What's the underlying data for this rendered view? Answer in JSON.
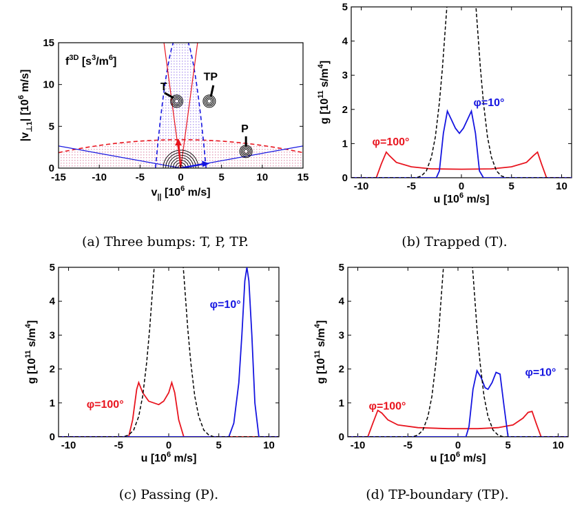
{
  "colors": {
    "red": "#e8141e",
    "blue": "#1414e0",
    "black": "#000000",
    "shade": "#c8a8ff"
  },
  "panels": [
    {
      "id": "a",
      "caption": "(a) Three bumps: T, P, TP.",
      "annotation": "f^3D [s^3/m^6]",
      "ann_main": "f",
      "ann_sup": "3D",
      "ann_rest": " [s",
      "ann_sup2": "3",
      "ann_rest2": "/m",
      "ann_sup3": "6",
      "ann_end": "]",
      "xlabel": "v_|| [10^6 m/s]",
      "ylabel": "|v_⊥1| [10^6 m/s]",
      "xlim": [
        -15,
        15
      ],
      "ylim": [
        0,
        15
      ],
      "xticks": [
        "-15",
        "-10",
        "-5",
        "0",
        "5",
        "10",
        "15"
      ],
      "yticks": [
        "0",
        "5",
        "10",
        "15"
      ],
      "labels": [
        "T",
        "TP",
        "P"
      ]
    },
    {
      "id": "b",
      "caption": "(b) Trapped (T)."
    },
    {
      "id": "c",
      "caption": "(c) Passing (P)."
    },
    {
      "id": "d",
      "caption": "(d) TP-boundary (TP)."
    }
  ],
  "gplot_axes": {
    "xlabel": "u [10^6 m/s]",
    "ylabel": "g [10^11 s/m^4]",
    "xlim": [
      -11,
      11
    ],
    "ylim": [
      0,
      5
    ],
    "xticks": [
      "-10",
      "-5",
      "0",
      "5",
      "10"
    ],
    "yticks": [
      "0",
      "1",
      "2",
      "3",
      "4",
      "5"
    ]
  },
  "chart_data": [
    {
      "type": "line",
      "panel": "b",
      "series": [
        {
          "name": "φ=100°",
          "color": "#e8141e",
          "x": [
            -11,
            -8.5,
            -8,
            -7.5,
            -7.2,
            -6.5,
            -5,
            -3,
            0,
            3,
            5,
            6.5,
            7.2,
            7.6,
            8,
            8.5,
            11
          ],
          "y": [
            0,
            0,
            0.4,
            0.75,
            0.65,
            0.45,
            0.32,
            0.26,
            0.25,
            0.26,
            0.32,
            0.45,
            0.65,
            0.75,
            0.4,
            0,
            0
          ]
        },
        {
          "name": "φ=10°",
          "color": "#1414e0",
          "x": [
            -11,
            -2.5,
            -2.2,
            -1.8,
            -1.4,
            -1.0,
            -0.6,
            -0.2,
            0.2,
            0.6,
            1.0,
            1.4,
            1.8,
            2.2,
            11
          ],
          "y": [
            0,
            0,
            0.2,
            1.3,
            1.95,
            1.7,
            1.45,
            1.3,
            1.45,
            1.7,
            1.95,
            1.3,
            0.2,
            0,
            0
          ]
        },
        {
          "name": "",
          "color": "#000000",
          "dashed": true,
          "x": [
            -11,
            -4.5,
            -4,
            -3.5,
            -3.0,
            -2.6,
            -2.2,
            -1.9,
            -1.6,
            -1.4,
            1.4,
            1.6,
            1.9,
            2.2,
            2.6,
            3.0,
            3.5,
            4,
            4.5,
            11
          ],
          "y": [
            0,
            0,
            0.05,
            0.2,
            0.6,
            1.2,
            2.2,
            3.2,
            4.4,
            5.2,
            5.2,
            4.4,
            3.2,
            2.2,
            1.2,
            0.6,
            0.2,
            0.05,
            0,
            0
          ]
        }
      ],
      "labels": {
        "red": "φ=100°",
        "blue": "φ=10°"
      }
    },
    {
      "type": "line",
      "panel": "c",
      "series": [
        {
          "name": "φ=100°",
          "color": "#e8141e",
          "x": [
            -11,
            -4,
            -3.6,
            -3.2,
            -3.0,
            -2.6,
            -2.0,
            -1.0,
            -0.5,
            0,
            0.3,
            0.6,
            1.0,
            1.5,
            11
          ],
          "y": [
            0,
            0,
            0.5,
            1.4,
            1.6,
            1.3,
            1.05,
            0.95,
            1.05,
            1.3,
            1.6,
            1.3,
            0.5,
            0,
            0
          ]
        },
        {
          "name": "φ=10°",
          "color": "#1414e0",
          "x": [
            -11,
            6.0,
            6.5,
            7.0,
            7.3,
            7.6,
            7.8,
            8.0,
            8.3,
            8.6,
            9.0,
            11
          ],
          "y": [
            0,
            0,
            0.4,
            1.6,
            3.0,
            4.6,
            5.0,
            4.6,
            3.0,
            1.0,
            0,
            0
          ]
        },
        {
          "name": "",
          "color": "#000000",
          "dashed": true,
          "x": [
            -11,
            -4.5,
            -4,
            -3.5,
            -3.0,
            -2.6,
            -2.2,
            -1.9,
            -1.6,
            -1.4,
            1.4,
            1.6,
            1.9,
            2.2,
            2.6,
            3.0,
            3.5,
            4,
            4.5,
            11
          ],
          "y": [
            0,
            0,
            0.05,
            0.2,
            0.6,
            1.2,
            2.2,
            3.2,
            4.4,
            5.2,
            5.2,
            4.4,
            3.2,
            2.2,
            1.2,
            0.6,
            0.2,
            0.05,
            0,
            0
          ]
        }
      ],
      "labels": {
        "red": "φ=100°",
        "blue": "φ=10°"
      }
    },
    {
      "type": "line",
      "panel": "d",
      "series": [
        {
          "name": "φ=100°",
          "color": "#e8141e",
          "x": [
            -11,
            -9,
            -8.5,
            -8,
            -7.6,
            -7,
            -6,
            -4,
            -1,
            2,
            4,
            5.5,
            6.5,
            7.0,
            7.4,
            7.8,
            8.3,
            11
          ],
          "y": [
            0,
            0,
            0.4,
            0.78,
            0.7,
            0.5,
            0.35,
            0.27,
            0.24,
            0.24,
            0.27,
            0.35,
            0.55,
            0.72,
            0.75,
            0.4,
            0,
            0
          ]
        },
        {
          "name": "φ=10°",
          "color": "#1414e0",
          "x": [
            -11,
            0.8,
            1.1,
            1.5,
            1.9,
            2.3,
            2.7,
            3.0,
            3.4,
            3.8,
            4.2,
            4.6,
            5.0,
            11
          ],
          "y": [
            0,
            0,
            0.3,
            1.4,
            1.95,
            1.75,
            1.45,
            1.4,
            1.6,
            1.9,
            1.85,
            0.9,
            0,
            0
          ]
        },
        {
          "name": "",
          "color": "#000000",
          "dashed": true,
          "x": [
            -11,
            -4.5,
            -4,
            -3.5,
            -3.0,
            -2.6,
            -2.2,
            -1.9,
            -1.6,
            -1.4,
            1.4,
            1.6,
            1.9,
            2.2,
            2.6,
            3.0,
            3.5,
            4,
            4.5,
            11
          ],
          "y": [
            0,
            0,
            0.05,
            0.2,
            0.6,
            1.2,
            2.2,
            3.2,
            4.4,
            5.2,
            5.2,
            4.4,
            3.2,
            2.2,
            1.2,
            0.6,
            0.2,
            0.05,
            0,
            0
          ]
        }
      ],
      "labels": {
        "red": "φ=100°",
        "blue": "φ=10°"
      }
    }
  ]
}
